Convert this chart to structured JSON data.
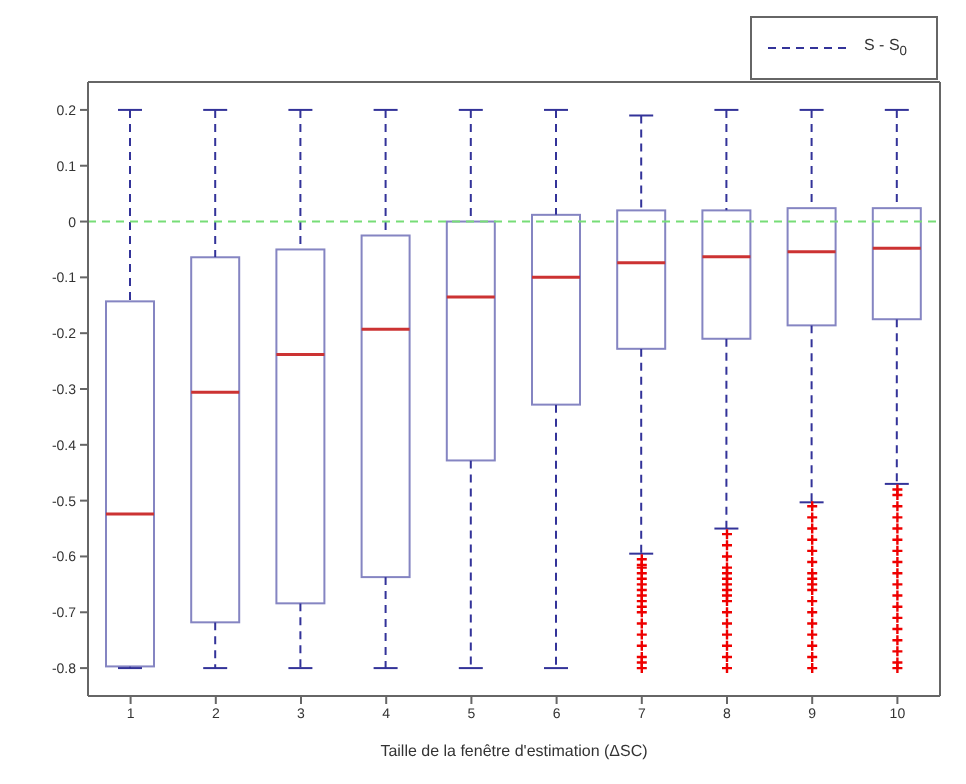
{
  "chart_data": {
    "type": "box",
    "xlabel": "Taille de la fenêtre d'estimation (ΔSC)",
    "categories": [
      "1",
      "2",
      "3",
      "4",
      "5",
      "6",
      "7",
      "8",
      "9",
      "10"
    ],
    "ylim": [
      -0.85,
      0.25
    ],
    "yticks": [
      -0.8,
      -0.7,
      -0.6,
      -0.5,
      -0.4,
      -0.3,
      -0.2,
      -0.1,
      0,
      0.1,
      0.2
    ],
    "grid": false,
    "legend": "top right",
    "marker": "cross",
    "line_style": "dashed",
    "ref_lines": [
      {
        "axis": "y",
        "value": 0,
        "color": "#77dd77",
        "line_style": "dashed"
      }
    ],
    "series": [
      {
        "name": "S - S$_{0}$",
        "color": "#333399",
        "boxes": [
          {
            "low": -0.8,
            "q1": -0.797,
            "median": -0.524,
            "q3": -0.143,
            "high": 0.2
          },
          {
            "low": -0.8,
            "q1": -0.718,
            "median": -0.306,
            "q3": -0.064,
            "high": 0.2
          },
          {
            "low": -0.8,
            "q1": -0.684,
            "median": -0.238,
            "q3": -0.05,
            "high": 0.2
          },
          {
            "low": -0.8,
            "q1": -0.637,
            "median": -0.193,
            "q3": -0.025,
            "high": 0.2
          },
          {
            "low": -0.8,
            "q1": -0.428,
            "median": -0.135,
            "q3": 0,
            "high": 0.2
          },
          {
            "low": -0.8,
            "q1": -0.328,
            "median": -0.1,
            "q3": 0.012,
            "high": 0.2
          },
          {
            "low": -0.595,
            "q1": -0.228,
            "median": -0.074,
            "q3": 0.02,
            "high": 0.19,
            "outliers": [
              -0.605,
              -0.615,
              -0.62,
              -0.63,
              -0.64,
              -0.65,
              -0.66,
              -0.67,
              -0.68,
              -0.69,
              -0.7,
              -0.72,
              -0.74,
              -0.76,
              -0.78,
              -0.79,
              -0.8
            ]
          },
          {
            "low": -0.55,
            "q1": -0.21,
            "median": -0.063,
            "q3": 0.02,
            "high": 0.2,
            "outliers": [
              -0.56,
              -0.58,
              -0.6,
              -0.62,
              -0.63,
              -0.64,
              -0.65,
              -0.66,
              -0.67,
              -0.68,
              -0.7,
              -0.72,
              -0.74,
              -0.76,
              -0.78,
              -0.8
            ]
          },
          {
            "low": -0.503,
            "q1": -0.186,
            "median": -0.054,
            "q3": 0.024,
            "high": 0.2,
            "outliers": [
              -0.51,
              -0.53,
              -0.55,
              -0.57,
              -0.59,
              -0.61,
              -0.63,
              -0.64,
              -0.65,
              -0.66,
              -0.68,
              -0.7,
              -0.72,
              -0.74,
              -0.76,
              -0.78,
              -0.8
            ]
          },
          {
            "low": -0.47,
            "q1": -0.175,
            "median": -0.048,
            "q3": 0.024,
            "high": 0.2,
            "outliers": [
              -0.48,
              -0.49,
              -0.51,
              -0.53,
              -0.55,
              -0.57,
              -0.59,
              -0.61,
              -0.63,
              -0.65,
              -0.67,
              -0.69,
              -0.71,
              -0.73,
              -0.75,
              -0.77,
              -0.79,
              -0.8
            ]
          }
        ]
      }
    ]
  }
}
